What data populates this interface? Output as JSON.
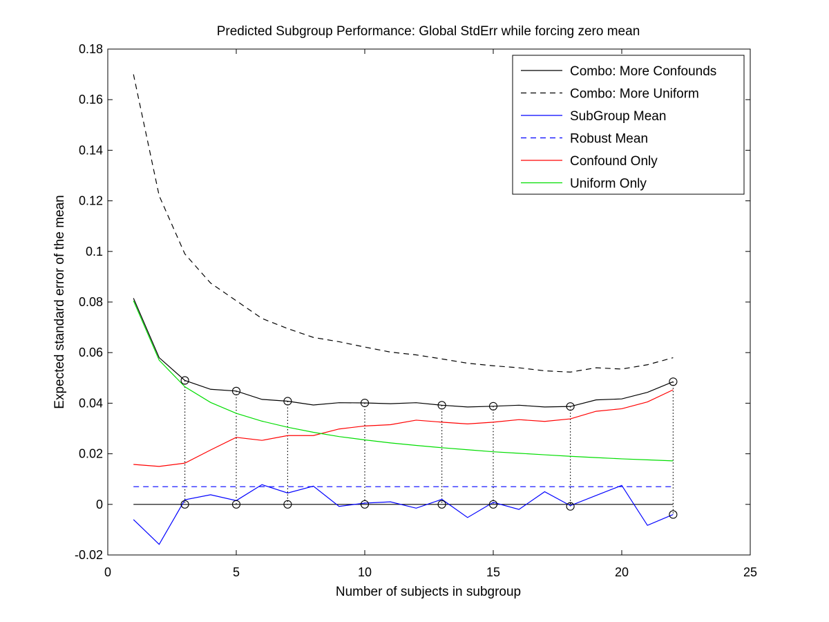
{
  "chart_data": {
    "type": "line",
    "title": "Predicted Subgroup Performance: Global StdErr while forcing zero mean",
    "xlabel": "Number of subjects in subgroup",
    "ylabel": "Expected standard error of the mean",
    "xlim": [
      0,
      25
    ],
    "ylim": [
      -0.02,
      0.18
    ],
    "xticks": [
      0,
      5,
      10,
      15,
      20,
      25
    ],
    "xtick_labels": [
      "0",
      "5",
      "10",
      "15",
      "20",
      "25"
    ],
    "yticks": [
      -0.02,
      0,
      0.02,
      0.04,
      0.06,
      0.08,
      0.1,
      0.12,
      0.14,
      0.16,
      0.18
    ],
    "ytick_labels": [
      "-0.02",
      "0",
      "0.02",
      "0.04",
      "0.06",
      "0.08",
      "0.1",
      "0.12",
      "0.14",
      "0.16",
      "0.18"
    ],
    "grid": false,
    "legend_position": "top-right",
    "x": [
      1,
      2,
      3,
      4,
      5,
      6,
      7,
      8,
      9,
      10,
      11,
      12,
      13,
      14,
      15,
      16,
      17,
      18,
      19,
      20,
      21,
      22
    ],
    "series": [
      {
        "name": "Combo: More Confounds",
        "color": "#000000",
        "dash": "solid",
        "values": [
          0.0815,
          0.058,
          0.049,
          0.0455,
          0.0448,
          0.0415,
          0.0408,
          0.0393,
          0.0402,
          0.0401,
          0.0398,
          0.0402,
          0.0392,
          0.0385,
          0.0388,
          0.0392,
          0.0385,
          0.0387,
          0.0413,
          0.0417,
          0.0443,
          0.0485
        ]
      },
      {
        "name": "Combo: More Uniform",
        "color": "#000000",
        "dash": "dashed",
        "values": [
          0.17,
          0.122,
          0.099,
          0.0875,
          0.0805,
          0.0735,
          0.0695,
          0.066,
          0.0643,
          0.0622,
          0.0602,
          0.0591,
          0.0575,
          0.0558,
          0.0548,
          0.054,
          0.0528,
          0.0523,
          0.054,
          0.0535,
          0.0552,
          0.058
        ]
      },
      {
        "name": "SubGroup Mean",
        "color": "#0000ff",
        "dash": "solid",
        "values": [
          -0.006,
          -0.0158,
          0.0018,
          0.0038,
          0.0015,
          0.0078,
          0.0045,
          0.0072,
          -0.0008,
          0.0005,
          0.001,
          -0.0015,
          0.002,
          -0.0052,
          0.0008,
          -0.002,
          0.005,
          -0.0005,
          0.0035,
          0.0075,
          -0.0083,
          -0.004
        ]
      },
      {
        "name": "Robust Mean",
        "color": "#0000ff",
        "dash": "dashed",
        "values": [
          0.007,
          0.007,
          0.007,
          0.007,
          0.007,
          0.007,
          0.007,
          0.007,
          0.007,
          0.007,
          0.007,
          0.007,
          0.007,
          0.007,
          0.007,
          0.007,
          0.007,
          0.007,
          0.007,
          0.007,
          0.007,
          0.007
        ]
      },
      {
        "name": "Confound Only",
        "color": "#ff0000",
        "dash": "solid",
        "values": [
          0.0158,
          0.015,
          0.0163,
          0.0215,
          0.0265,
          0.0253,
          0.0272,
          0.0272,
          0.0298,
          0.031,
          0.0315,
          0.0333,
          0.0325,
          0.0318,
          0.0325,
          0.0335,
          0.0328,
          0.0338,
          0.0368,
          0.0378,
          0.0405,
          0.0453
        ]
      },
      {
        "name": "Uniform Only",
        "color": "#00dd00",
        "dash": "solid",
        "values": [
          0.0805,
          0.057,
          0.0465,
          0.0403,
          0.036,
          0.0329,
          0.0305,
          0.0285,
          0.0268,
          0.0255,
          0.0243,
          0.0233,
          0.0224,
          0.0216,
          0.0208,
          0.0202,
          0.0196,
          0.019,
          0.0185,
          0.018,
          0.0176,
          0.0172
        ]
      }
    ],
    "zero_line": 0,
    "markers": {
      "x": [
        3,
        5,
        7,
        10,
        13,
        15,
        18,
        22
      ],
      "top": [
        0.049,
        0.0448,
        0.0408,
        0.0401,
        0.0392,
        0.0388,
        0.0387,
        0.0485
      ],
      "bottom": [
        0,
        0,
        0,
        0,
        0,
        0,
        -0.0008,
        -0.004
      ]
    }
  }
}
